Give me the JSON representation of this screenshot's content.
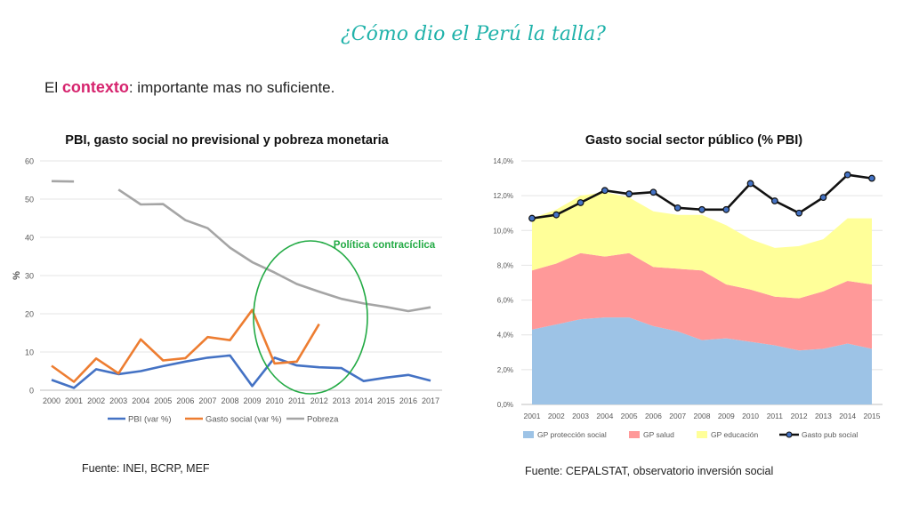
{
  "slide": {
    "title": "¿Cómo dio el Perú la talla?",
    "subtitle_prefix": "El ",
    "subtitle_keyword": "contexto",
    "subtitle_rest": ": importante mas no suficiente.",
    "source_left": "Fuente: INEI, BCRP, MEF",
    "source_right": "Fuente: CEPALSTAT, observatorio inversión social"
  },
  "colors": {
    "title": "#20b2aa",
    "keyword": "#d6246e",
    "pbi": "#4472c4",
    "gasto": "#ed7d31",
    "pobreza": "#a5a5a5",
    "ellipse": "#22aa44",
    "gp_proteccion": "#9dc3e6",
    "gp_salud": "#ff9999",
    "gp_educacion": "#ffff99",
    "gasto_pub": "#111111"
  },
  "chart_data": [
    {
      "type": "line",
      "title": "PBI, gasto social no previsional y pobreza monetaria",
      "ylabel": "%",
      "xlabel": "",
      "ylim": [
        0,
        60
      ],
      "yticks": [
        "0",
        "10",
        "20",
        "30",
        "40",
        "50",
        "60"
      ],
      "categories": [
        "2000",
        "2001",
        "2002",
        "2003",
        "2004",
        "2005",
        "2006",
        "2007",
        "2008",
        "2009",
        "2010",
        "2011",
        "2012",
        "2013",
        "2014",
        "2015",
        "2016",
        "2017"
      ],
      "series": [
        {
          "name": "PBI (var %)",
          "values": [
            2.7,
            0.6,
            5.5,
            4.2,
            5.0,
            6.3,
            7.5,
            8.5,
            9.1,
            1.1,
            8.5,
            6.5,
            6.0,
            5.8,
            2.4,
            3.3,
            4.0,
            2.5
          ]
        },
        {
          "name": "Gasto social (var %)",
          "values": [
            6.4,
            2.2,
            8.3,
            4.4,
            13.3,
            7.8,
            8.4,
            13.9,
            13.1,
            21.0,
            7.0,
            7.5,
            17.3,
            null,
            null,
            null,
            null,
            null
          ]
        },
        {
          "name": "Pobreza",
          "values": [
            54.7,
            54.6,
            null,
            52.5,
            48.6,
            48.7,
            44.5,
            42.4,
            37.3,
            33.5,
            30.8,
            27.8,
            25.8,
            23.9,
            22.7,
            21.8,
            20.7,
            21.7
          ]
        }
      ],
      "annotation": "Política contracíclica",
      "legend": "bottom"
    },
    {
      "type": "area",
      "title": "Gasto social sector público (% PBI)",
      "ylim": [
        0,
        14
      ],
      "yticks": [
        "0,0%",
        "2,0%",
        "4,0%",
        "6,0%",
        "8,0%",
        "10,0%",
        "12,0%",
        "14,0%"
      ],
      "categories": [
        "2001",
        "2002",
        "2003",
        "2004",
        "2005",
        "2006",
        "2007",
        "2008",
        "2009",
        "2010",
        "2011",
        "2012",
        "2013",
        "2014",
        "2015"
      ],
      "series": [
        {
          "name": "GP protección social",
          "kind": "stacked-area",
          "values": [
            4.3,
            4.6,
            4.9,
            5.0,
            5.0,
            4.5,
            4.2,
            3.7,
            3.8,
            3.6,
            3.4,
            3.1,
            3.2,
            3.5,
            3.2
          ]
        },
        {
          "name": "GP salud",
          "kind": "stacked-area",
          "values": [
            3.4,
            3.5,
            3.8,
            3.5,
            3.7,
            3.4,
            3.6,
            4.0,
            3.1,
            3.0,
            2.8,
            3.0,
            3.3,
            3.6,
            3.7
          ]
        },
        {
          "name": "GP educación",
          "kind": "stacked-area",
          "values": [
            3.0,
            3.1,
            3.3,
            3.7,
            3.2,
            3.2,
            3.1,
            3.2,
            3.4,
            2.9,
            2.8,
            3.0,
            3.0,
            3.6,
            3.8
          ]
        },
        {
          "name": "Gasto pub social",
          "kind": "line",
          "values": [
            10.7,
            10.9,
            11.6,
            12.3,
            12.1,
            12.2,
            11.3,
            11.2,
            11.2,
            12.7,
            11.7,
            11.0,
            11.9,
            13.2,
            13.0
          ]
        }
      ],
      "legend": "bottom"
    }
  ]
}
